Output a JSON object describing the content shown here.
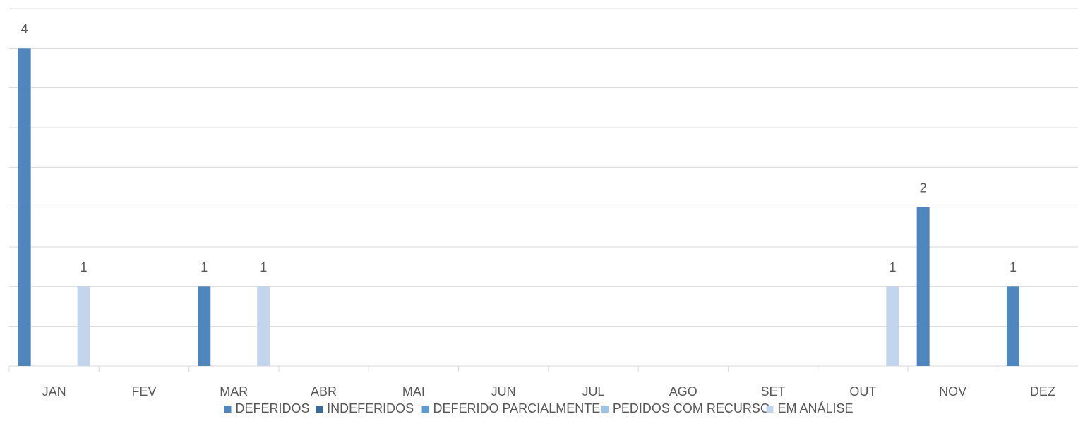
{
  "chart_data": {
    "type": "bar",
    "categories": [
      "JAN",
      "FEV",
      "MAR",
      "ABR",
      "MAI",
      "JUN",
      "JUL",
      "AGO",
      "SET",
      "OUT",
      "NOV",
      "DEZ"
    ],
    "series": [
      {
        "name": "DEFERIDOS",
        "color": "#4e86bd",
        "values": [
          4,
          null,
          1,
          null,
          null,
          null,
          null,
          null,
          null,
          null,
          2,
          1
        ]
      },
      {
        "name": "INDEFERIDOS",
        "color": "#3a6a9c",
        "values": [
          null,
          null,
          null,
          null,
          null,
          null,
          null,
          null,
          null,
          null,
          null,
          null
        ]
      },
      {
        "name": "DEFERIDO PARCIALMENTE",
        "color": "#5b9bd5",
        "values": [
          null,
          null,
          null,
          null,
          null,
          null,
          null,
          null,
          null,
          null,
          null,
          null
        ]
      },
      {
        "name": "PEDIDOS COM RECURSO",
        "color": "#9dc3e6",
        "values": [
          null,
          null,
          null,
          null,
          null,
          null,
          null,
          null,
          null,
          null,
          null,
          null
        ]
      },
      {
        "name": "EM ANÁLISE",
        "color": "#c3d5ec",
        "values": [
          1,
          null,
          1,
          null,
          null,
          null,
          null,
          null,
          null,
          1,
          null,
          null
        ]
      }
    ],
    "ylim": [
      0,
      4.5
    ],
    "yticks": [
      0,
      0.5,
      1,
      1.5,
      2,
      2.5,
      3,
      3.5,
      4,
      4.5
    ],
    "grid": true,
    "legend": "bottom"
  }
}
